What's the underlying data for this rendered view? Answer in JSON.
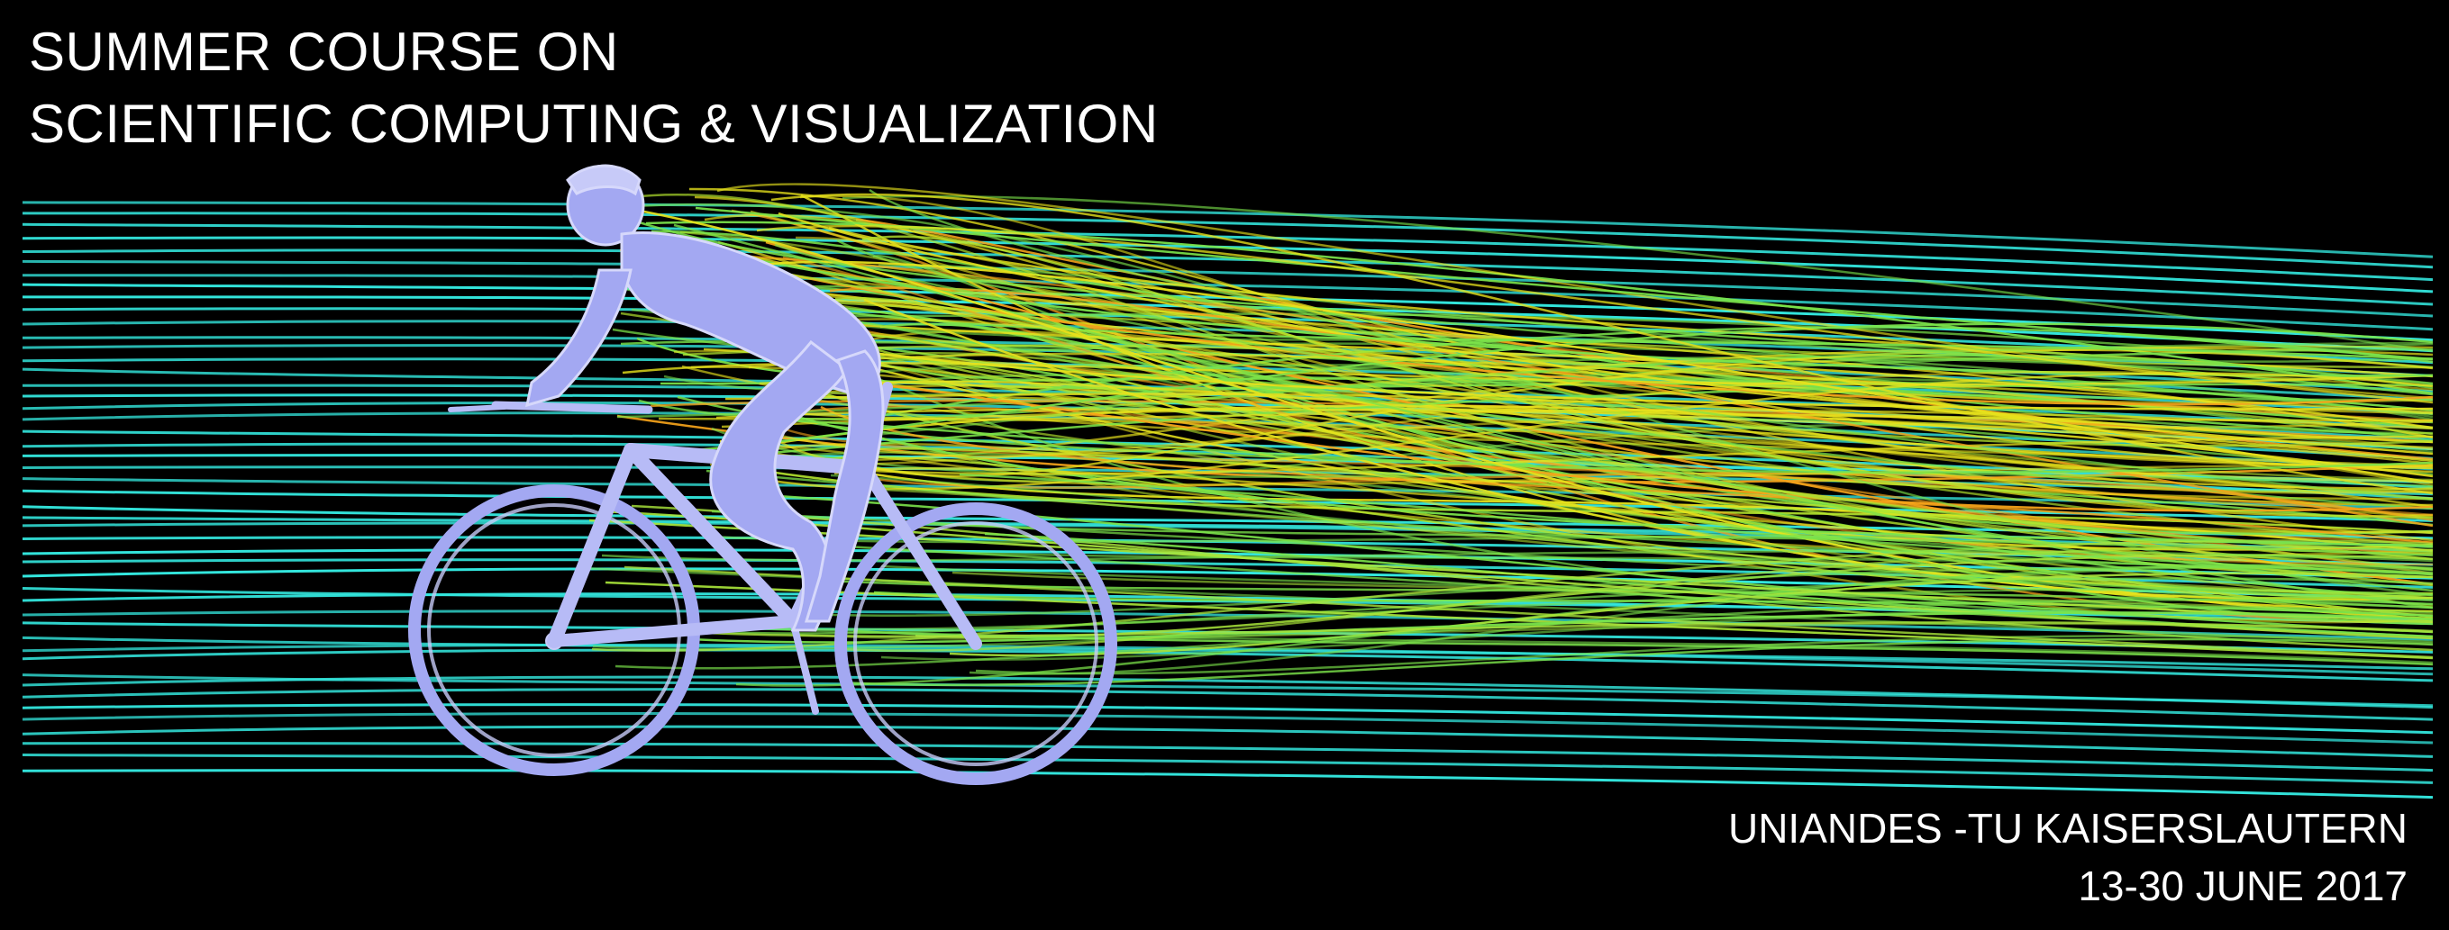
{
  "title": {
    "line1": "SUMMER COURSE ON",
    "line2": "SCIENTIFIC COMPUTING & VISUALIZATION"
  },
  "footer": {
    "institutions": "UNIANDES -TU KAISERSLAUTERN",
    "dates": "13-30 JUNE 2017"
  },
  "colors": {
    "background": "#000000",
    "text": "#ffffff",
    "freestream": "#33e6dd",
    "wake_green": "#7be34a",
    "wake_yellow": "#e7e21c",
    "wake_orange": "#f5a31a",
    "cyclist": "#a3a8f2"
  },
  "artwork": {
    "subject": "cyclist-streamlines"
  }
}
